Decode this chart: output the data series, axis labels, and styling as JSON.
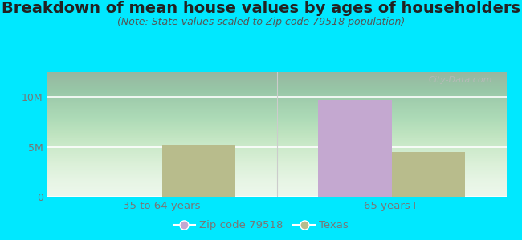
{
  "title": "Breakdown of mean house values by ages of householders",
  "subtitle": "(Note: State values scaled to Zip code 79518 population)",
  "categories": [
    "35 to 64 years",
    "65 years+"
  ],
  "zip_values": [
    0,
    9700000
  ],
  "state_values": [
    5200000,
    4500000
  ],
  "zip_color": "#c4a8d0",
  "state_color": "#b8bc8c",
  "background_outer": "#00e8ff",
  "ylim": [
    0,
    12500000
  ],
  "yticks": [
    0,
    5000000,
    10000000
  ],
  "ytick_labels": [
    "0",
    "5M",
    "10M"
  ],
  "legend_zip_label": "Zip code 79518",
  "legend_state_label": "Texas",
  "title_fontsize": 14,
  "subtitle_fontsize": 9,
  "axis_label_color": "#777777",
  "bar_width": 0.32,
  "watermark": "City-Data.com"
}
